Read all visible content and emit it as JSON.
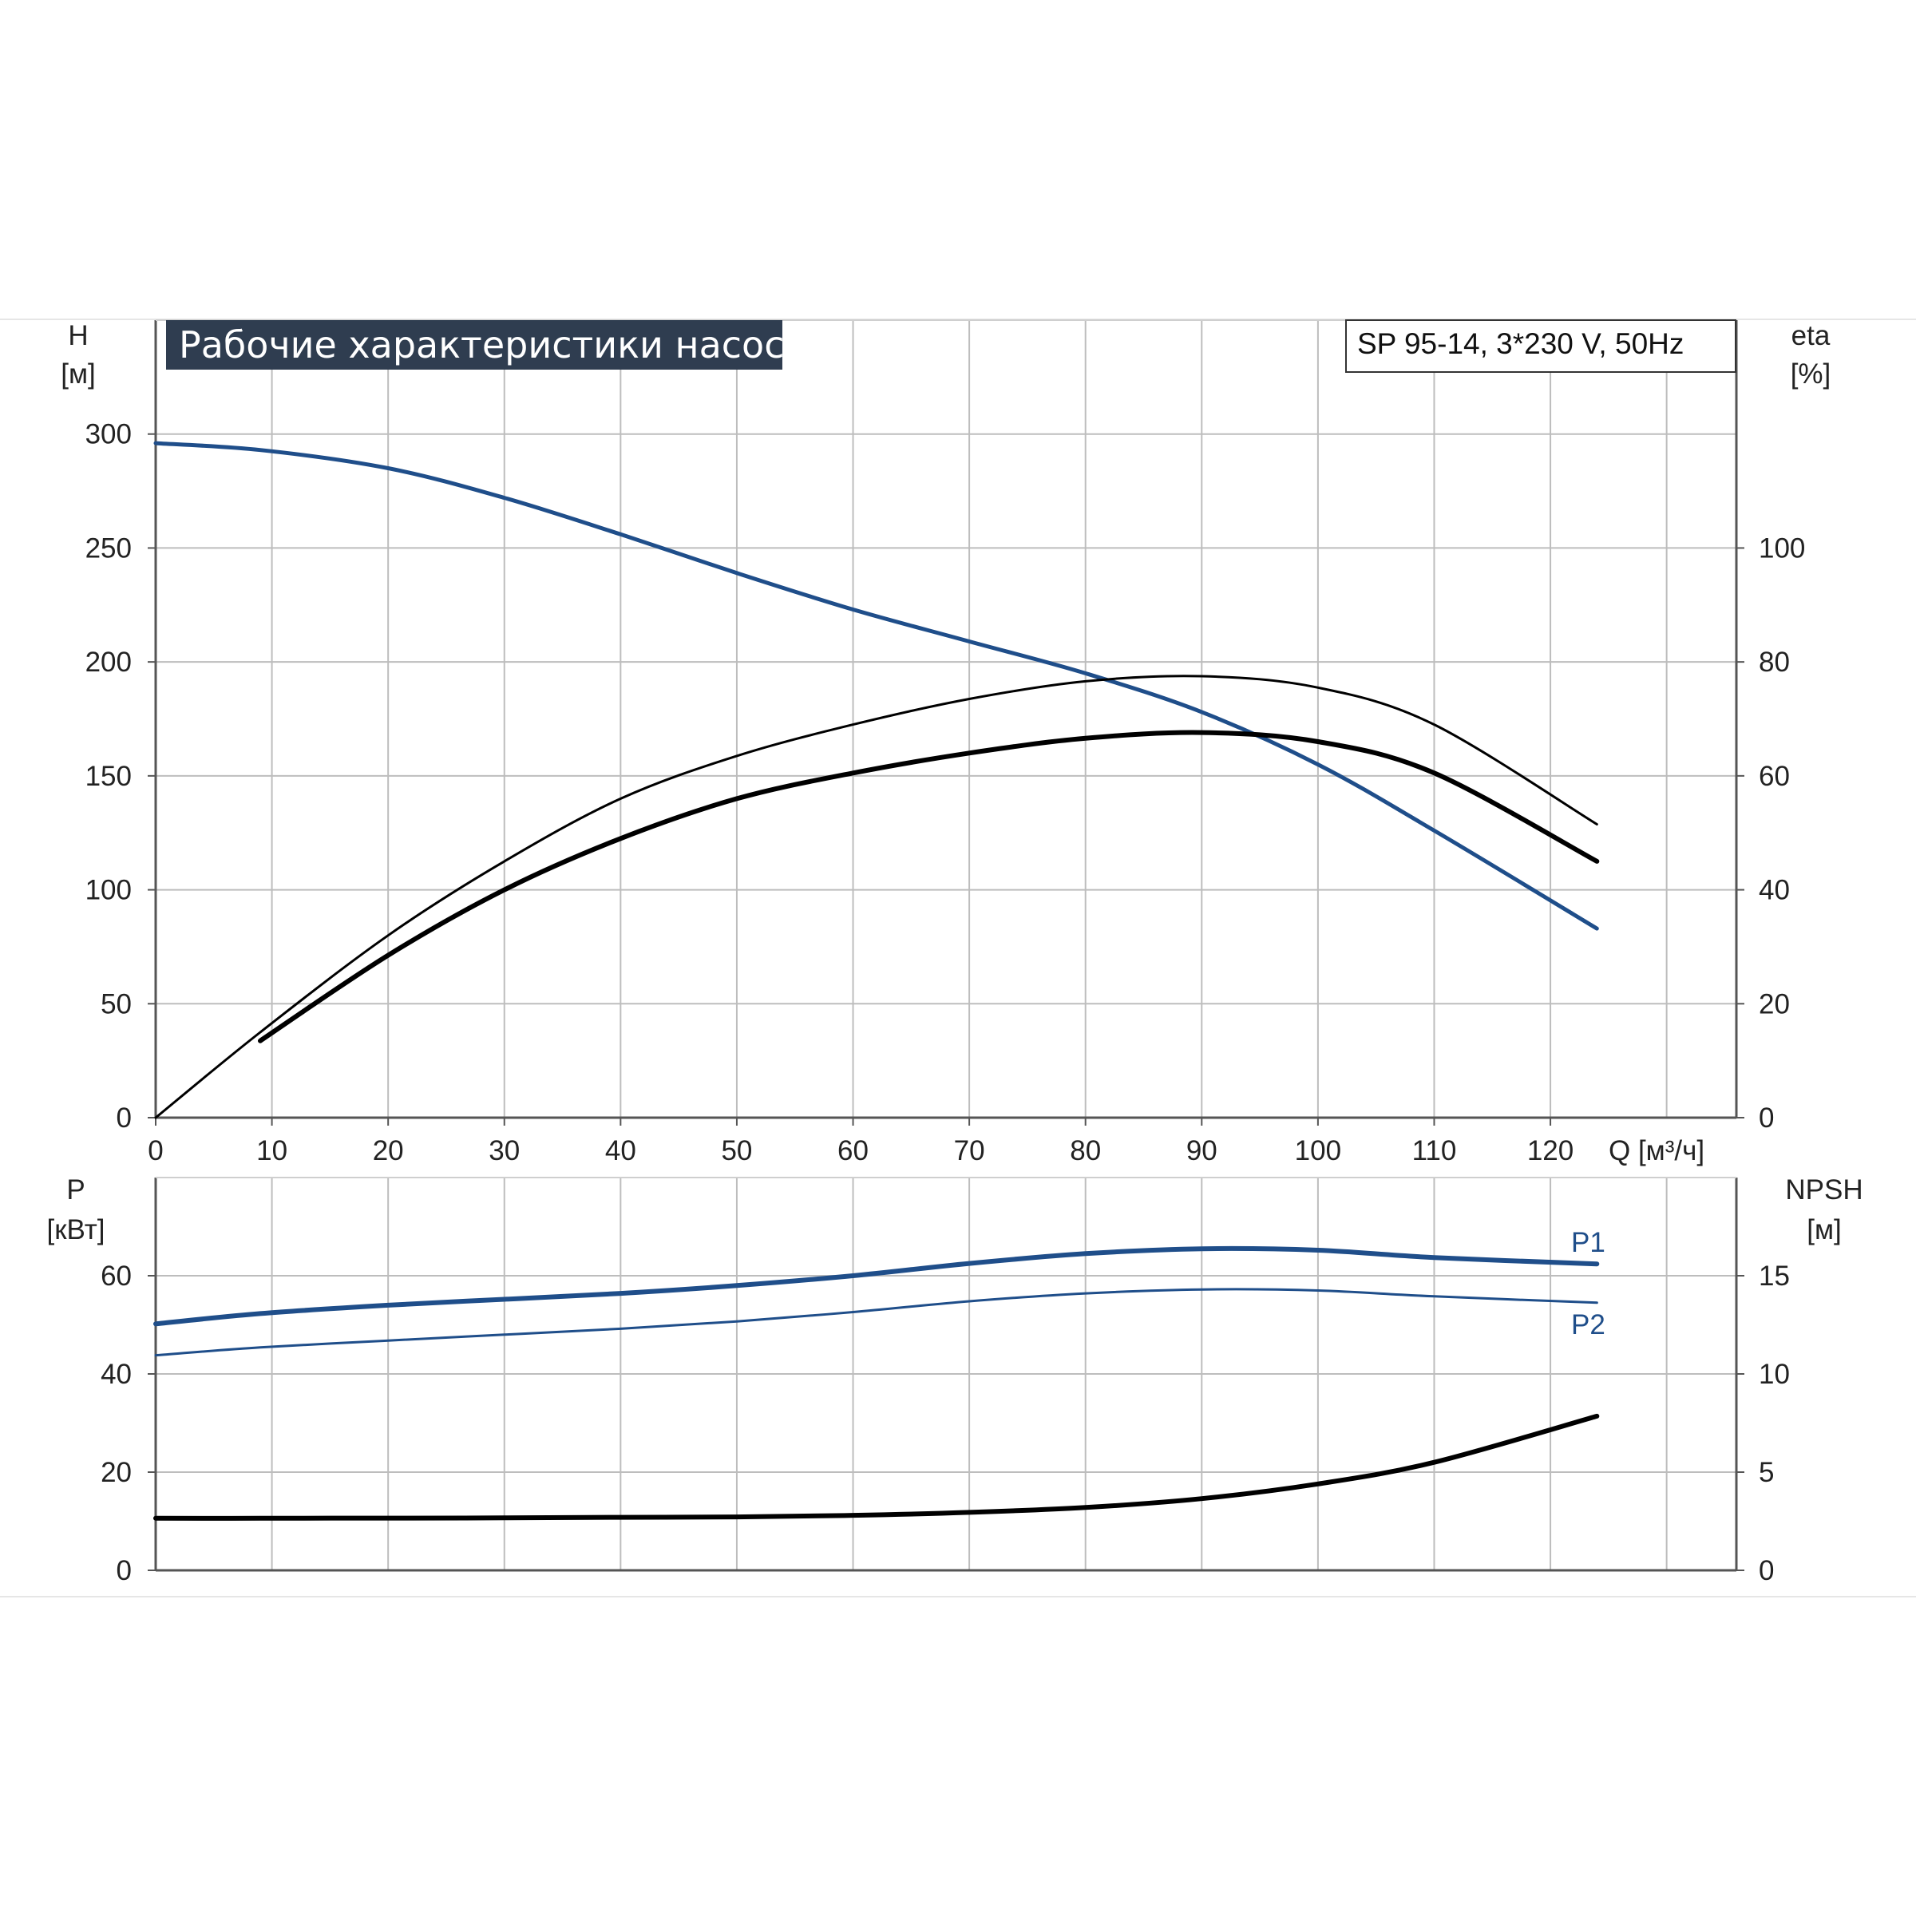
{
  "chart_data": [
    {
      "type": "line",
      "title": "Рабочие характеристики насоса",
      "model": "SP 95-14, 3*230 V, 50Hz",
      "xlabel": "Q [м³/ч]",
      "ylabel": "H",
      "ylabel_unit": "[м]",
      "y2label": "eta",
      "y2label_unit": "[%]",
      "xlim": [
        0,
        136
      ],
      "ylim": [
        0,
        350
      ],
      "y2lim": [
        0,
        140
      ],
      "xticks": [
        0,
        10,
        20,
        30,
        40,
        50,
        60,
        70,
        80,
        90,
        100,
        110,
        120
      ],
      "yticks": [
        0,
        50,
        100,
        150,
        200,
        250,
        300
      ],
      "y2ticks": [
        0,
        20,
        40,
        60,
        80,
        100
      ],
      "grid": true,
      "series": [
        {
          "key": "H",
          "axis": "left",
          "color": "#1f4e8a",
          "x": [
            0,
            9,
            20,
            30,
            40,
            50,
            60,
            70,
            80,
            90,
            100,
            110,
            124
          ],
          "y": [
            296,
            293,
            285,
            272,
            256,
            239,
            223,
            209,
            195,
            178,
            155,
            126,
            83
          ]
        },
        {
          "key": "eta-thin",
          "axis": "right",
          "color": "#000000",
          "x": [
            0,
            9,
            20,
            30,
            40,
            50,
            60,
            70,
            80,
            90,
            100,
            110,
            124
          ],
          "y": [
            0,
            15,
            32,
            45,
            56,
            63.5,
            69,
            73.5,
            76.6,
            77.5,
            75.5,
            69,
            51.5
          ]
        },
        {
          "key": "eta-thick",
          "axis": "right",
          "color": "#000000",
          "x": [
            9,
            20,
            30,
            40,
            50,
            60,
            70,
            80,
            90,
            100,
            110,
            124
          ],
          "y": [
            13.5,
            28.5,
            40,
            49,
            56,
            60.5,
            64,
            66.6,
            67.6,
            66,
            60.5,
            45
          ]
        }
      ]
    },
    {
      "type": "line",
      "xlim": [
        0,
        136
      ],
      "ylabel": "P",
      "ylabel_unit": "[кВт]",
      "y2label": "NPSH",
      "y2label_unit": "[м]",
      "ylim": [
        0,
        80
      ],
      "y2lim": [
        0,
        20
      ],
      "yticks": [
        0,
        20,
        40,
        60
      ],
      "y2ticks": [
        0,
        5,
        10,
        15
      ],
      "grid": true,
      "series": [
        {
          "name": "P1",
          "axis": "left",
          "color": "#1f4e8a",
          "x": [
            0,
            9,
            20,
            30,
            40,
            50,
            60,
            70,
            80,
            90,
            100,
            110,
            124
          ],
          "y": [
            50.2,
            52.3,
            54,
            55.2,
            56.4,
            58,
            60,
            62.5,
            64.5,
            65.5,
            65.2,
            63.7,
            62.4
          ]
        },
        {
          "name": "P2",
          "axis": "left",
          "color": "#1f4e8a",
          "x": [
            0,
            9,
            20,
            30,
            40,
            50,
            60,
            70,
            80,
            90,
            100,
            110,
            124
          ],
          "y": [
            43.8,
            45.4,
            46.8,
            48,
            49.2,
            50.7,
            52.6,
            54.8,
            56.4,
            57.2,
            57,
            55.8,
            54.5
          ]
        },
        {
          "key": "NPSH",
          "axis": "right",
          "color": "#000000",
          "x": [
            0,
            9,
            20,
            30,
            40,
            50,
            60,
            70,
            80,
            90,
            100,
            110,
            124
          ],
          "y": [
            2.65,
            2.65,
            2.66,
            2.67,
            2.7,
            2.72,
            2.8,
            2.95,
            3.2,
            3.65,
            4.4,
            5.5,
            7.85
          ]
        }
      ]
    }
  ]
}
